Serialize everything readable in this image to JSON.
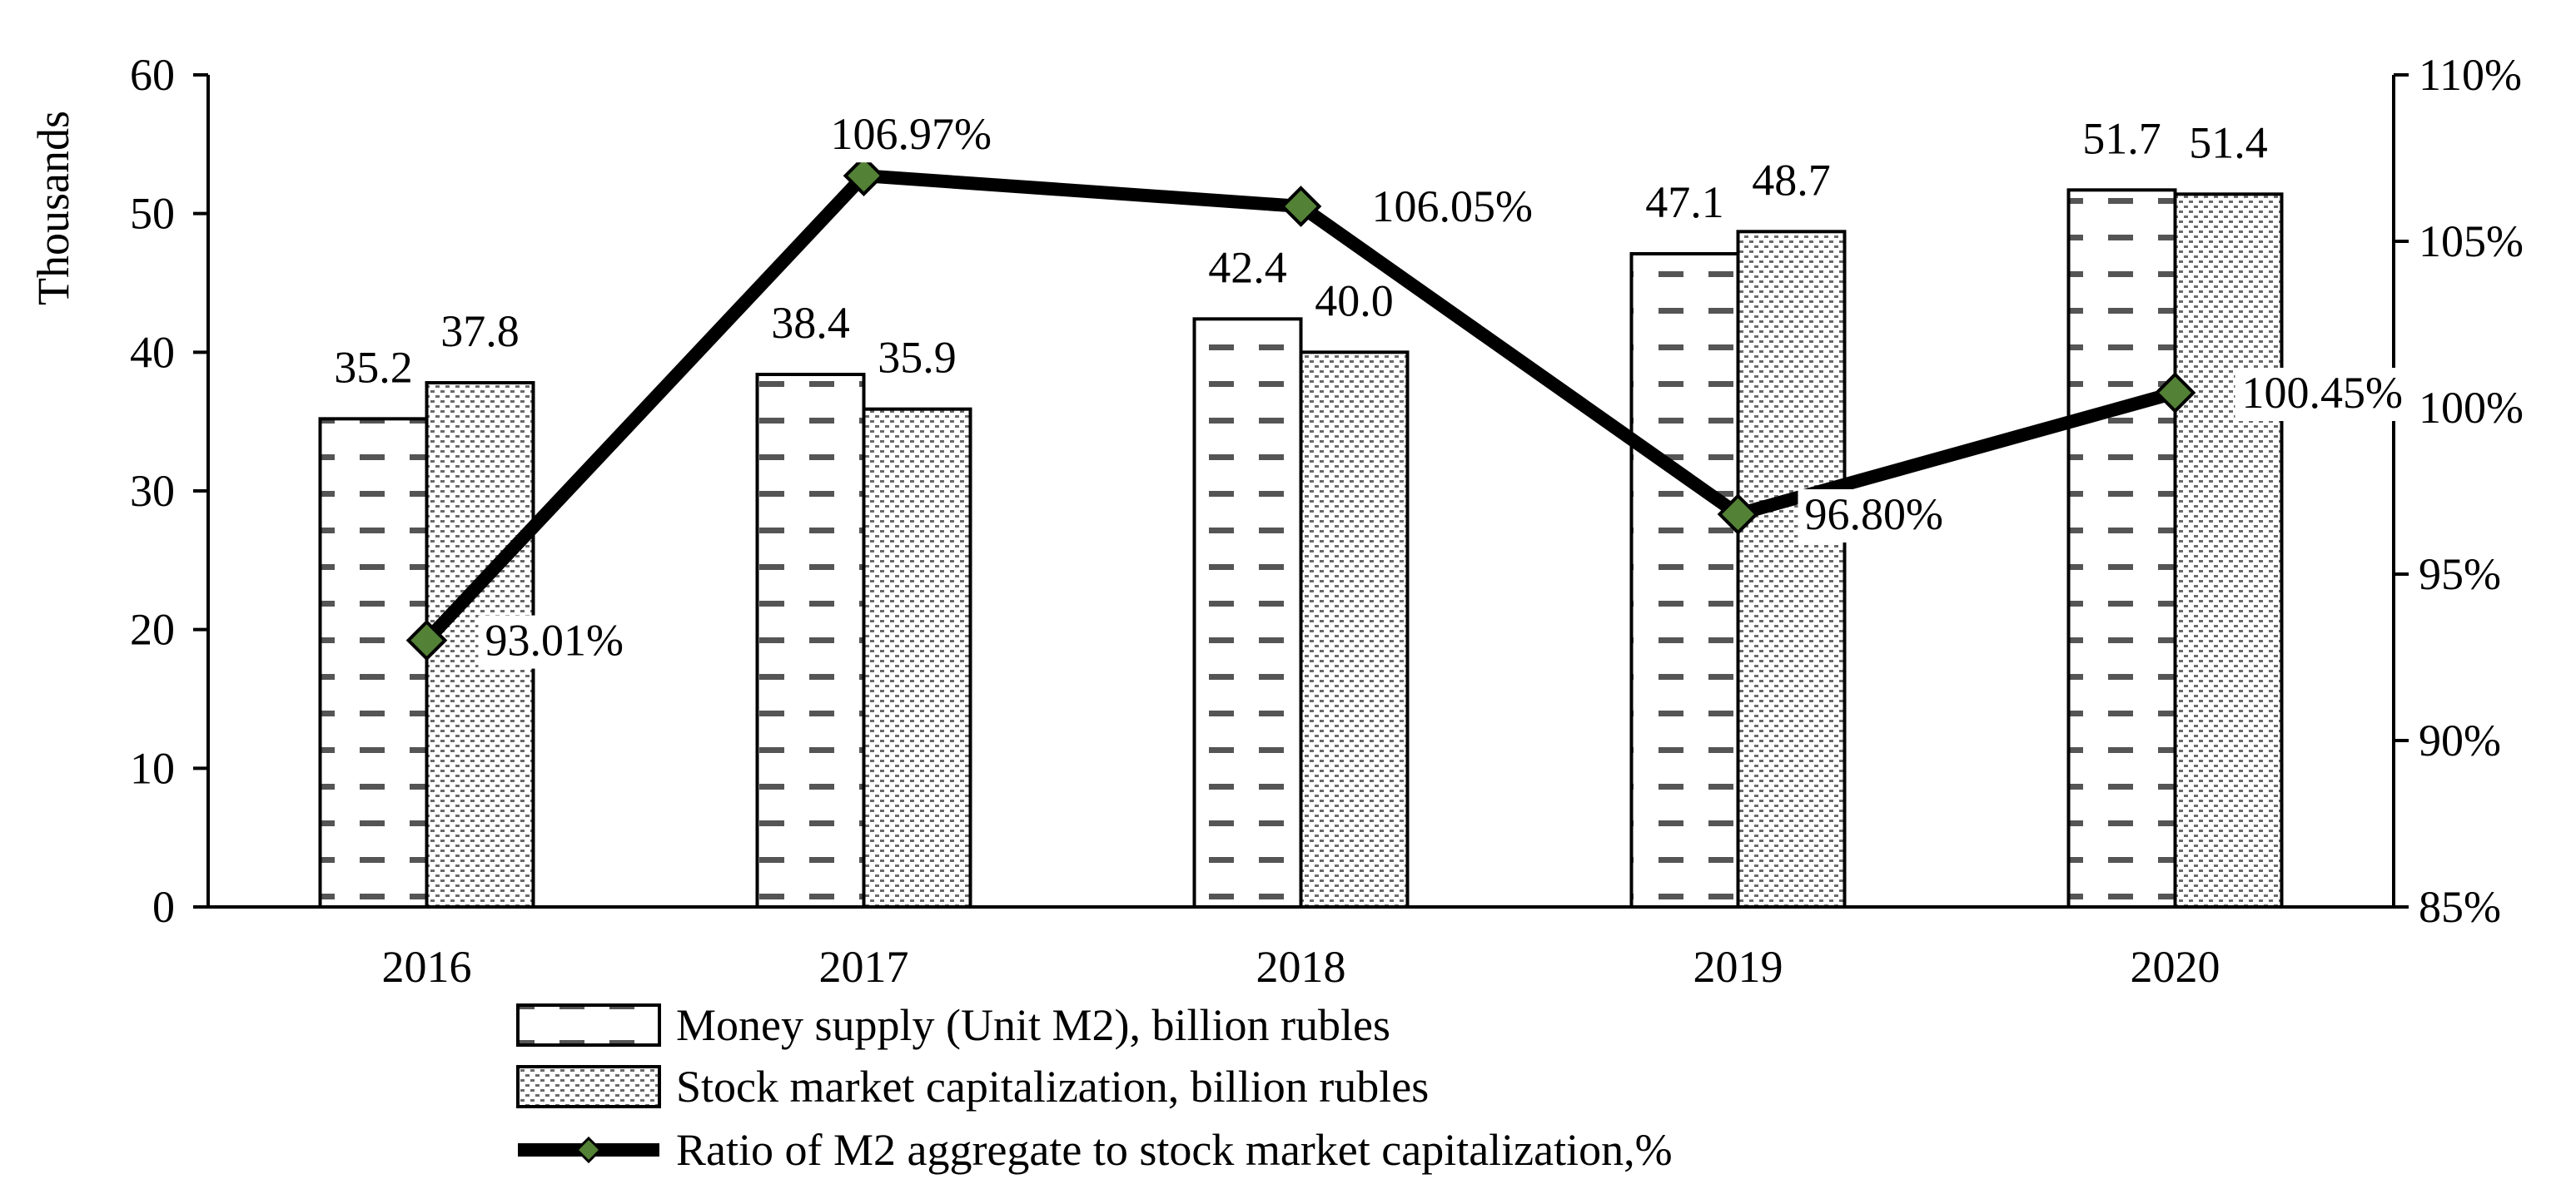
{
  "chart_data": {
    "type": "bar",
    "title": "",
    "xlabel": "",
    "ylabel": "Thousands",
    "categories": [
      "2016",
      "2017",
      "2018",
      "2019",
      "2020"
    ],
    "ylim": [
      0,
      60
    ],
    "y_ticks": [
      0,
      10,
      20,
      30,
      40,
      50,
      60
    ],
    "y2lim": [
      85,
      110
    ],
    "y2_ticks": [
      "85%",
      "90%",
      "95%",
      "100%",
      "105%",
      "110%"
    ],
    "grid": false,
    "legend_position": "bottom",
    "series": [
      {
        "name": "Money supply (Unit M2), billion rubles",
        "type": "bar",
        "axis": "left",
        "values": [
          35.2,
          38.4,
          42.4,
          47.1,
          51.7
        ],
        "labels": [
          "35.2",
          "38.4",
          "42.4",
          "47.1",
          "51.7"
        ]
      },
      {
        "name": "Stock market capitalization, billion rubles",
        "type": "bar",
        "axis": "left",
        "values": [
          37.8,
          35.9,
          40.0,
          48.7,
          51.4
        ],
        "labels": [
          "37.8",
          "35.9",
          "40.0",
          "48.7",
          "51.4"
        ]
      },
      {
        "name": "Ratio of M2 aggregate to stock market capitalization,%",
        "type": "line",
        "axis": "right",
        "values": [
          93.01,
          106.97,
          106.05,
          96.8,
          100.45
        ],
        "labels": [
          "93.01%",
          "106.97%",
          "106.05%",
          "96.80%",
          "100.45%"
        ],
        "color": "#538135"
      }
    ]
  }
}
